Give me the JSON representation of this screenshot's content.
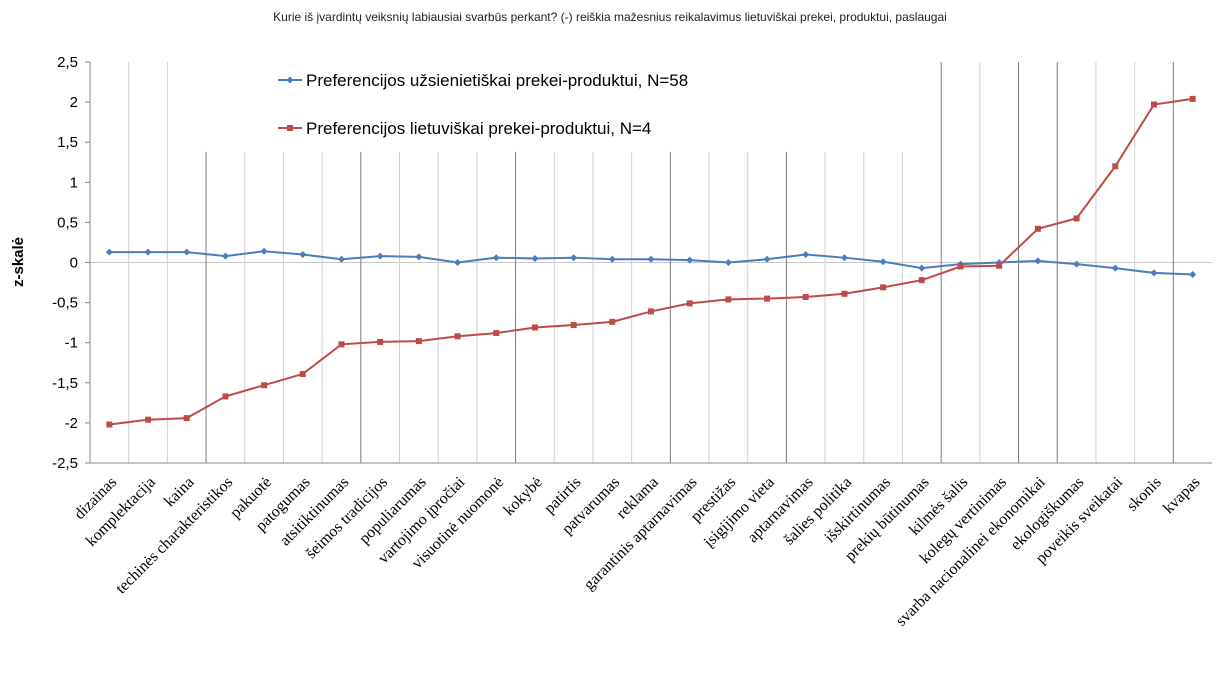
{
  "chart_data": {
    "type": "line",
    "title": "Kurie iš įvardintų veiksnių labiausiai svarbūs perkant? (-) reiškia mažesnius reikalavimus  lietuviškai prekei, produktui, paslaugai",
    "ylabel": "z-skalė",
    "xlabel": "",
    "ylim": [
      -2.5,
      2.5
    ],
    "yticks": [
      "2,5",
      "2",
      "1,5",
      "1",
      "0,5",
      "0",
      "-0,5",
      "-1",
      "-1,5",
      "-2",
      "-2,5"
    ],
    "legend_position": "top-left",
    "categories": [
      "dizainas",
      "komplektacija",
      "kaina",
      "techinės charakteristikos",
      "pakuotė",
      "patogumas",
      "atsitiktinumas",
      "šeimos tradicijos",
      "populiarumas",
      "vartojimo įpročiai",
      "visuotinė nuomonė",
      "kokybė",
      "patirtis",
      "patvarumas",
      "reklama",
      "garantinis aptarnavimas",
      "prestižas",
      "įsigijimo vieta",
      "aptarnavimas",
      "šalies politika",
      "išskirtinumas",
      "prekių būtinumas",
      "kilmės šalis",
      "kolegų vertinimas",
      "svarba nacionalinei ekonomikai",
      "ekologiškumas",
      "poveikis sveikatai",
      "skonis",
      "kvapas"
    ],
    "series": [
      {
        "name": "Preferencijos užsienietiškai prekei-produktui, N=58",
        "color": "#4a7ebb",
        "marker": "diamond",
        "values": [
          0.13,
          0.13,
          0.13,
          0.08,
          0.14,
          0.1,
          0.04,
          0.08,
          0.07,
          0.0,
          0.06,
          0.05,
          0.06,
          0.04,
          0.04,
          0.03,
          0.0,
          0.04,
          0.1,
          0.06,
          0.01,
          -0.07,
          -0.02,
          0.0,
          0.02,
          -0.02,
          -0.07,
          -0.13,
          -0.15
        ]
      },
      {
        "name": "Preferencijos lietuviškai prekei-produktui, N=4",
        "color": "#be4b48",
        "marker": "square",
        "values": [
          -2.02,
          -1.96,
          -1.94,
          -1.67,
          -1.53,
          -1.39,
          -1.02,
          -0.99,
          -0.98,
          -0.92,
          -0.88,
          -0.81,
          -0.78,
          -0.74,
          -0.61,
          -0.51,
          -0.46,
          -0.45,
          -0.43,
          -0.39,
          -0.31,
          -0.22,
          -0.05,
          -0.04,
          0.42,
          0.55,
          1.2,
          1.97,
          2.04
        ]
      }
    ],
    "dark_gridline_after_categories": [
      "kaina",
      "atsitiktinumas",
      "visuotinė nuomonė",
      "reklama",
      "įsigijimo vieta",
      "prekių būtinumas",
      "kolegų vertinimas",
      "svarba nacionalinei ekonomikai",
      "skonis"
    ]
  }
}
